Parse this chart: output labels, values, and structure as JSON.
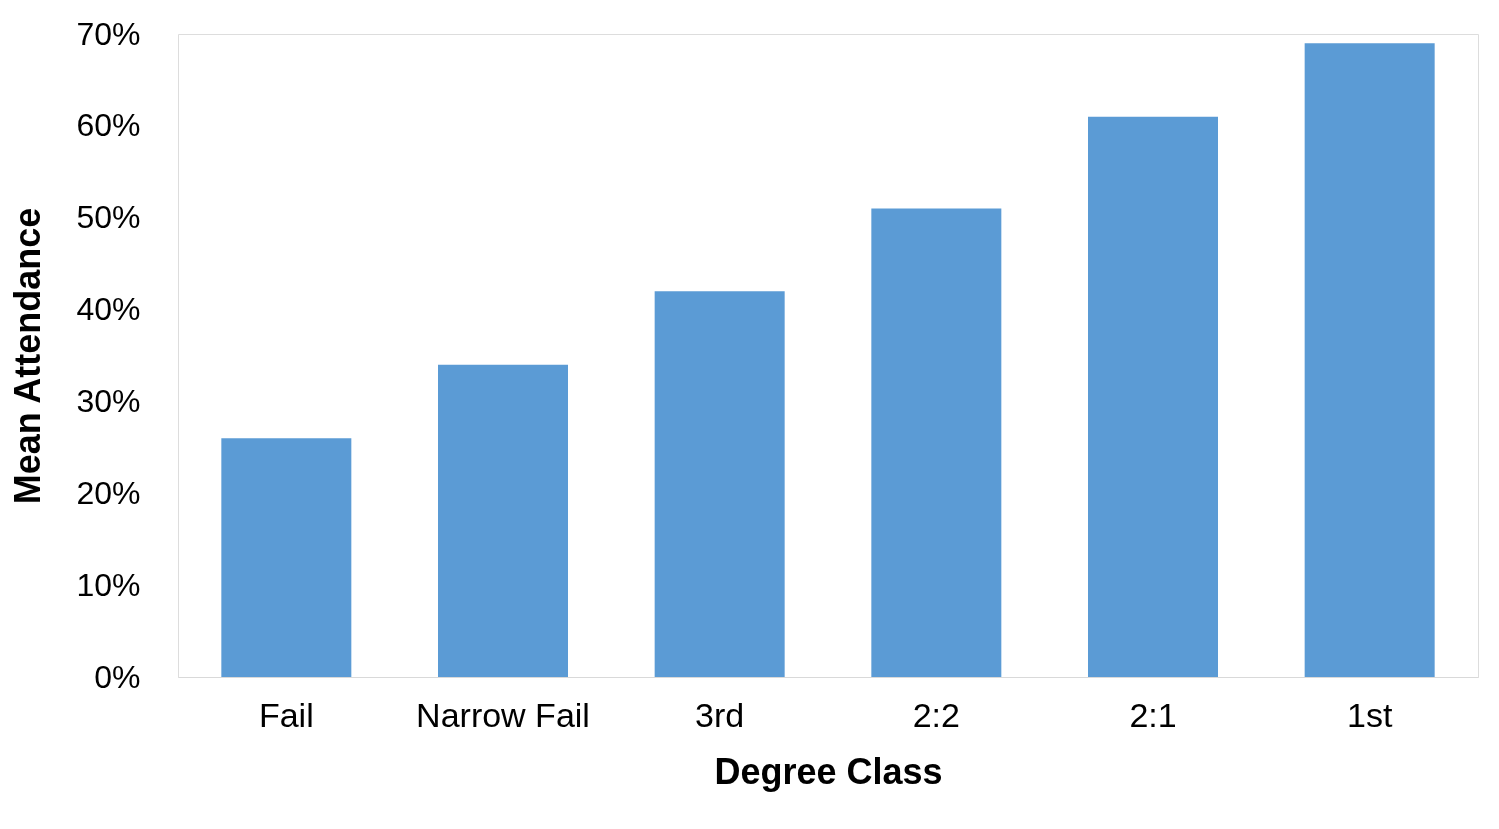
{
  "chart_data": {
    "type": "bar",
    "xlabel": "Degree Class",
    "ylabel": "Mean Attendance",
    "categories": [
      "Fail",
      "Narrow Fail",
      "3rd",
      "2:2",
      "2:1",
      "1st"
    ],
    "values": [
      26,
      34,
      42,
      51,
      61,
      69
    ],
    "color": "#5b9bd5",
    "ylim": [
      0,
      70
    ],
    "yticks": [
      {
        "value": 0,
        "label": "0%"
      },
      {
        "value": 10,
        "label": "10%"
      },
      {
        "value": 20,
        "label": "20%"
      },
      {
        "value": 30,
        "label": "30%"
      },
      {
        "value": 40,
        "label": "40%"
      },
      {
        "value": 50,
        "label": "50%"
      },
      {
        "value": 60,
        "label": "60%"
      },
      {
        "value": 70,
        "label": "70%"
      }
    ],
    "grid": false
  }
}
